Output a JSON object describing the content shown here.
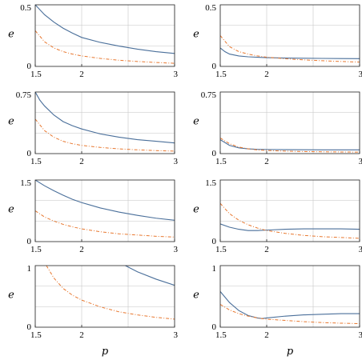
{
  "chart_data": [
    {
      "type": "line",
      "panel": "row1-left",
      "xlabel": "",
      "ylabel": "e",
      "xlim": [
        1.5,
        3
      ],
      "ylim": [
        0,
        0.5
      ],
      "xticks": [
        "1.5",
        "2",
        "3"
      ],
      "yticks": [
        "0",
        "0.5"
      ],
      "grid": true,
      "series": [
        {
          "style": "solid",
          "color": "#4a6f9a",
          "x": [
            1.5,
            1.6,
            1.7,
            1.8,
            1.9,
            2.0,
            2.2,
            2.4,
            2.6,
            2.8,
            3.0
          ],
          "y": [
            0.5,
            0.42,
            0.36,
            0.31,
            0.27,
            0.235,
            0.195,
            0.165,
            0.14,
            0.12,
            0.105
          ]
        },
        {
          "style": "dashed",
          "color": "#e8772e",
          "x": [
            1.5,
            1.6,
            1.7,
            1.8,
            1.9,
            2.0,
            2.2,
            2.4,
            2.6,
            2.8,
            3.0
          ],
          "y": [
            0.29,
            0.2,
            0.15,
            0.12,
            0.1,
            0.085,
            0.065,
            0.05,
            0.04,
            0.032,
            0.025
          ]
        }
      ]
    },
    {
      "type": "line",
      "panel": "row1-right",
      "xlabel": "",
      "ylabel": "e",
      "xlim": [
        1.5,
        3
      ],
      "ylim": [
        0,
        0.5
      ],
      "xticks": [
        "1.5",
        "2",
        "3"
      ],
      "yticks": [
        "0",
        "0.5"
      ],
      "grid": true,
      "series": [
        {
          "style": "solid",
          "color": "#4a6f9a",
          "x": [
            1.5,
            1.55,
            1.6,
            1.7,
            1.8,
            1.9,
            2.0,
            2.2,
            2.4,
            2.6,
            2.8,
            3.0
          ],
          "y": [
            0.15,
            0.12,
            0.1,
            0.085,
            0.078,
            0.074,
            0.071,
            0.068,
            0.066,
            0.065,
            0.064,
            0.063
          ]
        },
        {
          "style": "dashed",
          "color": "#e8772e",
          "x": [
            1.5,
            1.6,
            1.7,
            1.8,
            1.9,
            2.0,
            2.2,
            2.4,
            2.6,
            2.8,
            3.0
          ],
          "y": [
            0.25,
            0.16,
            0.12,
            0.1,
            0.085,
            0.075,
            0.062,
            0.053,
            0.046,
            0.04,
            0.035
          ]
        }
      ]
    },
    {
      "type": "line",
      "panel": "row2-left",
      "xlabel": "",
      "ylabel": "e",
      "xlim": [
        1.5,
        3
      ],
      "ylim": [
        0,
        0.75
      ],
      "xticks": [
        "1.5",
        "2",
        "3"
      ],
      "yticks": [
        "0",
        "0.75"
      ],
      "grid": true,
      "series": [
        {
          "style": "solid",
          "color": "#4a6f9a",
          "x": [
            1.5,
            1.55,
            1.6,
            1.7,
            1.8,
            1.9,
            2.0,
            2.2,
            2.4,
            2.6,
            2.8,
            3.0
          ],
          "y": [
            0.75,
            0.65,
            0.58,
            0.47,
            0.39,
            0.34,
            0.3,
            0.24,
            0.2,
            0.17,
            0.15,
            0.13
          ]
        },
        {
          "style": "dashed",
          "color": "#e8772e",
          "x": [
            1.5,
            1.6,
            1.7,
            1.8,
            1.9,
            2.0,
            2.2,
            2.4,
            2.6,
            2.8,
            3.0
          ],
          "y": [
            0.42,
            0.28,
            0.2,
            0.15,
            0.12,
            0.1,
            0.075,
            0.058,
            0.046,
            0.037,
            0.03
          ]
        }
      ]
    },
    {
      "type": "line",
      "panel": "row2-right",
      "xlabel": "",
      "ylabel": "e",
      "xlim": [
        1.5,
        3
      ],
      "ylim": [
        0,
        0.75
      ],
      "xticks": [
        "1.5",
        "2",
        "3"
      ],
      "yticks": [
        "0",
        "0.75"
      ],
      "grid": true,
      "series": [
        {
          "style": "solid",
          "color": "#4a6f9a",
          "x": [
            1.5,
            1.6,
            1.7,
            1.8,
            1.9,
            2.0,
            2.2,
            2.4,
            2.6,
            2.8,
            3.0
          ],
          "y": [
            0.17,
            0.1,
            0.07,
            0.058,
            0.052,
            0.05,
            0.048,
            0.047,
            0.046,
            0.046,
            0.046
          ]
        },
        {
          "style": "dashed",
          "color": "#e8772e",
          "x": [
            1.5,
            1.6,
            1.7,
            1.8,
            1.9,
            2.0,
            2.2,
            2.4,
            2.6,
            2.8,
            3.0
          ],
          "y": [
            0.19,
            0.12,
            0.08,
            0.058,
            0.045,
            0.038,
            0.03,
            0.025,
            0.022,
            0.02,
            0.018
          ]
        }
      ]
    },
    {
      "type": "line",
      "panel": "row3-left",
      "xlabel": "",
      "ylabel": "e",
      "xlim": [
        1.5,
        3
      ],
      "ylim": [
        0,
        1.5
      ],
      "xticks": [
        "1.5",
        "2",
        "3"
      ],
      "yticks": [
        "0",
        "1.5"
      ],
      "grid": true,
      "series": [
        {
          "style": "solid",
          "color": "#4a6f9a",
          "x": [
            1.5,
            1.6,
            1.7,
            1.8,
            1.9,
            2.0,
            2.2,
            2.4,
            2.6,
            2.8,
            3.0
          ],
          "y": [
            1.5,
            1.36,
            1.24,
            1.13,
            1.03,
            0.95,
            0.82,
            0.72,
            0.64,
            0.57,
            0.52
          ]
        },
        {
          "style": "dashed",
          "color": "#e8772e",
          "x": [
            1.5,
            1.6,
            1.7,
            1.8,
            1.9,
            2.0,
            2.2,
            2.4,
            2.6,
            2.8,
            3.0
          ],
          "y": [
            0.75,
            0.6,
            0.5,
            0.42,
            0.36,
            0.31,
            0.24,
            0.19,
            0.16,
            0.13,
            0.11
          ]
        }
      ]
    },
    {
      "type": "line",
      "panel": "row3-right",
      "xlabel": "",
      "ylabel": "e",
      "xlim": [
        1.5,
        3
      ],
      "ylim": [
        0,
        1.5
      ],
      "xticks": [
        "1.5",
        "2",
        "3"
      ],
      "yticks": [
        "0",
        "1.5"
      ],
      "grid": true,
      "series": [
        {
          "style": "solid",
          "color": "#4a6f9a",
          "x": [
            1.5,
            1.6,
            1.7,
            1.8,
            1.9,
            2.0,
            2.2,
            2.4,
            2.6,
            2.8,
            3.0
          ],
          "y": [
            0.43,
            0.35,
            0.3,
            0.27,
            0.27,
            0.28,
            0.3,
            0.31,
            0.31,
            0.31,
            0.3
          ]
        },
        {
          "style": "dashed",
          "color": "#e8772e",
          "x": [
            1.5,
            1.6,
            1.7,
            1.8,
            1.9,
            2.0,
            2.2,
            2.4,
            2.6,
            2.8,
            3.0
          ],
          "y": [
            0.93,
            0.68,
            0.52,
            0.41,
            0.33,
            0.27,
            0.2,
            0.15,
            0.12,
            0.1,
            0.08
          ]
        }
      ]
    },
    {
      "type": "line",
      "panel": "row4-left",
      "xlabel": "p",
      "ylabel": "e",
      "xlim": [
        1.5,
        3
      ],
      "ylim": [
        0,
        1
      ],
      "xticks": [
        "1.5",
        "2",
        "3"
      ],
      "yticks": [
        "0",
        "1"
      ],
      "grid": true,
      "series": [
        {
          "style": "solid",
          "color": "#4a6f9a",
          "x": [
            2.47,
            2.6,
            2.8,
            3.0
          ],
          "y": [
            1.0,
            0.9,
            0.78,
            0.68
          ]
        },
        {
          "style": "dashed",
          "color": "#e8772e",
          "x": [
            1.62,
            1.7,
            1.8,
            1.9,
            2.0,
            2.2,
            2.4,
            2.6,
            2.8,
            3.0
          ],
          "y": [
            1.0,
            0.8,
            0.63,
            0.52,
            0.44,
            0.33,
            0.25,
            0.2,
            0.16,
            0.13
          ]
        }
      ]
    },
    {
      "type": "line",
      "panel": "row4-right",
      "xlabel": "p",
      "ylabel": "e",
      "xlim": [
        1.5,
        3
      ],
      "ylim": [
        0,
        1
      ],
      "xticks": [
        "1.5",
        "2",
        "3"
      ],
      "yticks": [
        "0",
        "1"
      ],
      "grid": true,
      "series": [
        {
          "style": "solid",
          "color": "#4a6f9a",
          "x": [
            1.5,
            1.6,
            1.7,
            1.8,
            1.9,
            1.95,
            2.0,
            2.2,
            2.4,
            2.6,
            2.8,
            3.0
          ],
          "y": [
            0.58,
            0.4,
            0.27,
            0.19,
            0.15,
            0.14,
            0.15,
            0.18,
            0.2,
            0.21,
            0.22,
            0.22
          ]
        },
        {
          "style": "dashed",
          "color": "#e8772e",
          "x": [
            1.5,
            1.6,
            1.7,
            1.8,
            1.9,
            2.0,
            2.2,
            2.4,
            2.6,
            2.8,
            3.0
          ],
          "y": [
            0.37,
            0.28,
            0.22,
            0.18,
            0.15,
            0.13,
            0.11,
            0.09,
            0.075,
            0.065,
            0.058
          ]
        }
      ]
    }
  ]
}
